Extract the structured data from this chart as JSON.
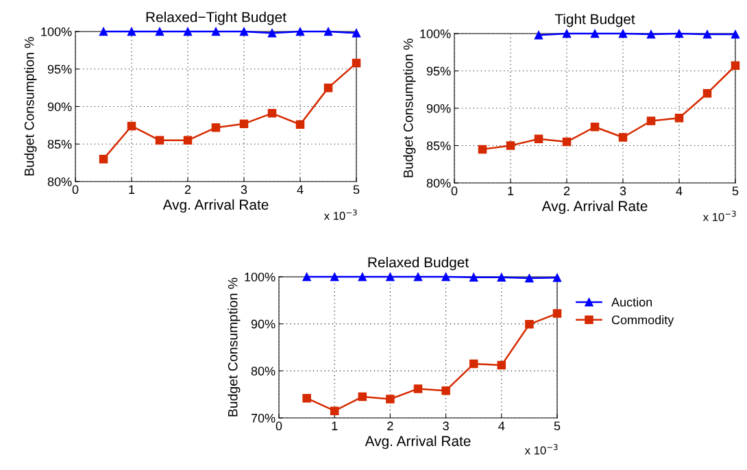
{
  "chart_data": [
    {
      "type": "line",
      "title": "Relaxed−Tight Budget",
      "xlabel": "Avg. Arrival Rate",
      "ylabel": "Budget Consumption %",
      "annotations": [
        "x 10$^{−3}$"
      ],
      "xlim": [
        0,
        5
      ],
      "xticks": [
        0,
        1,
        2,
        3,
        4,
        5
      ],
      "ylim": [
        80,
        100
      ],
      "yticks": [
        {
          "value": 80,
          "label": "80%"
        },
        {
          "value": 85,
          "label": "85%"
        },
        {
          "value": 90,
          "label": "90%"
        },
        {
          "value": 95,
          "label": "95%"
        },
        {
          "value": 100,
          "label": "100%"
        }
      ],
      "grid": true,
      "legend": false,
      "line_style": "solid",
      "series": [
        {
          "color": "#0000ff",
          "marker": "triangle",
          "x": [
            0.5,
            1,
            1.5,
            2,
            2.5,
            3,
            3.5,
            4,
            4.5,
            5
          ],
          "values": [
            100,
            100,
            100,
            100,
            100,
            100,
            99.8,
            100,
            100,
            99.8
          ]
        },
        {
          "color": "#d62a00",
          "marker": "square",
          "x": [
            0.5,
            1,
            1.5,
            2,
            2.5,
            3,
            3.5,
            4,
            4.5,
            5
          ],
          "values": [
            83.0,
            87.4,
            85.5,
            85.5,
            87.2,
            87.7,
            89.1,
            87.6,
            92.5,
            95.8
          ]
        }
      ]
    },
    {
      "type": "line",
      "title": "Tight Budget",
      "xlabel": "Avg. Arrival Rate",
      "ylabel": "Budget Consumption %",
      "annotations": [
        "x 10$^{−3}$"
      ],
      "xlim": [
        0,
        5
      ],
      "xticks": [
        0,
        1,
        2,
        3,
        4,
        5
      ],
      "ylim": [
        80,
        100
      ],
      "yticks": [
        {
          "value": 80,
          "label": "80%"
        },
        {
          "value": 85,
          "label": "85%"
        },
        {
          "value": 90,
          "label": "90%"
        },
        {
          "value": 95,
          "label": "95%"
        },
        {
          "value": 100,
          "label": "100%"
        }
      ],
      "grid": true,
      "legend": false,
      "line_style": "solid",
      "series": [
        {
          "color": "#0000ff",
          "marker": "triangle",
          "x": [
            1.5,
            2,
            2.5,
            3,
            3.5,
            4,
            4.5,
            5
          ],
          "values": [
            99.8,
            100,
            100,
            100,
            99.9,
            100,
            99.9,
            99.9
          ]
        },
        {
          "color": "#d62a00",
          "marker": "square",
          "x": [
            0.5,
            1,
            1.5,
            2,
            2.5,
            3,
            3.5,
            4,
            4.5,
            5
          ],
          "values": [
            84.5,
            85.0,
            85.9,
            85.5,
            87.5,
            86.1,
            88.3,
            88.7,
            92.0,
            95.7
          ]
        }
      ]
    },
    {
      "type": "line",
      "title": "Relaxed Budget",
      "xlabel": "Avg. Arrival Rate",
      "ylabel": "Budget Consumption %",
      "annotations": [
        "x 10$^{−3}$"
      ],
      "xlim": [
        0,
        5
      ],
      "xticks": [
        0,
        1,
        2,
        3,
        4,
        5
      ],
      "ylim": [
        70,
        100
      ],
      "yticks": [
        {
          "value": 70,
          "label": "70%"
        },
        {
          "value": 80,
          "label": "80%"
        },
        {
          "value": 90,
          "label": "90%"
        },
        {
          "value": 100,
          "label": "100%"
        }
      ],
      "grid": true,
      "legend": "right",
      "line_style": "solid",
      "series": [
        {
          "name": "Auction",
          "color": "#0000ff",
          "marker": "triangle",
          "x": [
            0.5,
            1,
            1.5,
            2,
            2.5,
            3,
            3.5,
            4,
            4.5,
            5
          ],
          "values": [
            100,
            100,
            100,
            100,
            100,
            100,
            99.9,
            99.9,
            99.7,
            99.8
          ]
        },
        {
          "name": "Commodity",
          "color": "#d62a00",
          "marker": "square",
          "x": [
            0.5,
            1,
            1.5,
            2,
            2.5,
            3,
            3.5,
            4,
            4.5,
            5
          ],
          "values": [
            74.2,
            71.5,
            74.5,
            74.0,
            76.2,
            75.8,
            81.5,
            81.2,
            89.9,
            92.2
          ]
        }
      ]
    }
  ]
}
